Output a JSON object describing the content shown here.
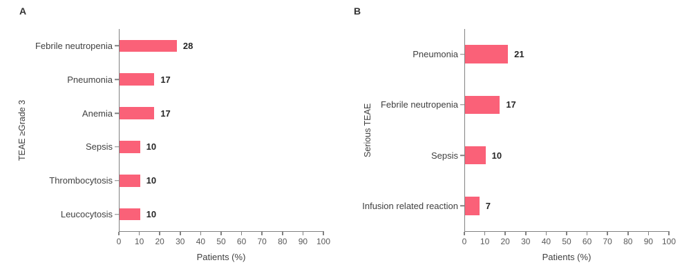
{
  "colors": {
    "bar": "#FA6178",
    "axis": "#808080",
    "tick_label": "#595959",
    "category_label": "#404040",
    "value_label": "#262626",
    "panel_letter": "#333333",
    "background": "#ffffff"
  },
  "chart_data": [
    {
      "type": "bar",
      "orientation": "horizontal",
      "panel_label": "A",
      "title": "",
      "categories": [
        "Febrile neutropenia",
        "Pneumonia",
        "Anemia",
        "Sepsis",
        "Thrombocytosis",
        "Leucocytosis"
      ],
      "values": [
        28,
        17,
        17,
        10,
        10,
        10
      ],
      "xlabel": "Patients (%)",
      "ylabel": "TEAE ≥Grade 3",
      "xlim": [
        0,
        100
      ],
      "xticks": [
        0,
        10,
        20,
        30,
        40,
        50,
        60,
        70,
        80,
        90,
        100
      ],
      "bar_color": "#FA6178",
      "data_labels": true,
      "grid": false,
      "legend": null
    },
    {
      "type": "bar",
      "orientation": "horizontal",
      "panel_label": "B",
      "title": "",
      "categories": [
        "Pneumonia",
        "Febrile neutropenia",
        "Sepsis",
        "Infusion related reaction"
      ],
      "values": [
        21,
        17,
        10,
        7
      ],
      "xlabel": "Patients (%)",
      "ylabel": "Serious TEAE",
      "xlim": [
        0,
        100
      ],
      "xticks": [
        0,
        10,
        20,
        30,
        40,
        50,
        60,
        70,
        80,
        90,
        100
      ],
      "bar_color": "#FA6178",
      "data_labels": true,
      "grid": false,
      "legend": null
    }
  ]
}
